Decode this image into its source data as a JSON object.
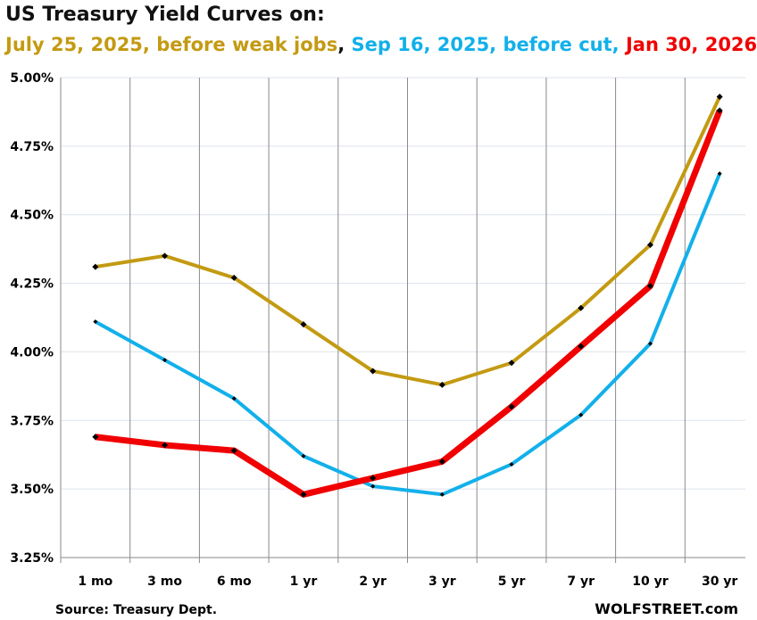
{
  "chart_data": {
    "type": "line",
    "title": "US Treasury Yield Curves on:",
    "subtitle_parts": [
      {
        "text": "July 25, 2025, before weak jobs",
        "color": "#C39A12"
      },
      {
        "text": ", ",
        "color": "#111111"
      },
      {
        "text": "Sep 16, 2025, before cut, ",
        "color": "#12B0EA"
      },
      {
        "text": "Jan 30, 2026",
        "color": "#F00000"
      }
    ],
    "categories": [
      "1 mo",
      "3 mo",
      "6 mo",
      "1 yr",
      "2 yr",
      "3 yr",
      "5 yr",
      "7 yr",
      "10 yr",
      "30 yr"
    ],
    "y_ticks": [
      "3.25%",
      "3.50%",
      "3.75%",
      "4.00%",
      "4.25%",
      "4.50%",
      "4.75%",
      "5.00%"
    ],
    "ylim": [
      3.25,
      5.0
    ],
    "grid": true,
    "series": [
      {
        "name": "July 25, 2025, before weak jobs",
        "color": "#C39A12",
        "values": [
          4.31,
          4.35,
          4.27,
          4.1,
          3.93,
          3.88,
          3.96,
          4.16,
          4.39,
          4.93
        ]
      },
      {
        "name": "Sep 16, 2025, before cut",
        "color": "#12B0EA",
        "values": [
          4.11,
          3.97,
          3.83,
          3.62,
          3.51,
          3.48,
          3.59,
          3.77,
          4.03,
          4.65
        ]
      },
      {
        "name": "Jan 30, 2026",
        "color": "#F00000",
        "values": [
          3.69,
          3.66,
          3.64,
          3.48,
          3.54,
          3.6,
          3.8,
          4.02,
          4.24,
          4.88
        ]
      }
    ],
    "source": "Source: Treasury Dept.",
    "brand": "WOLFSTREET.com"
  }
}
